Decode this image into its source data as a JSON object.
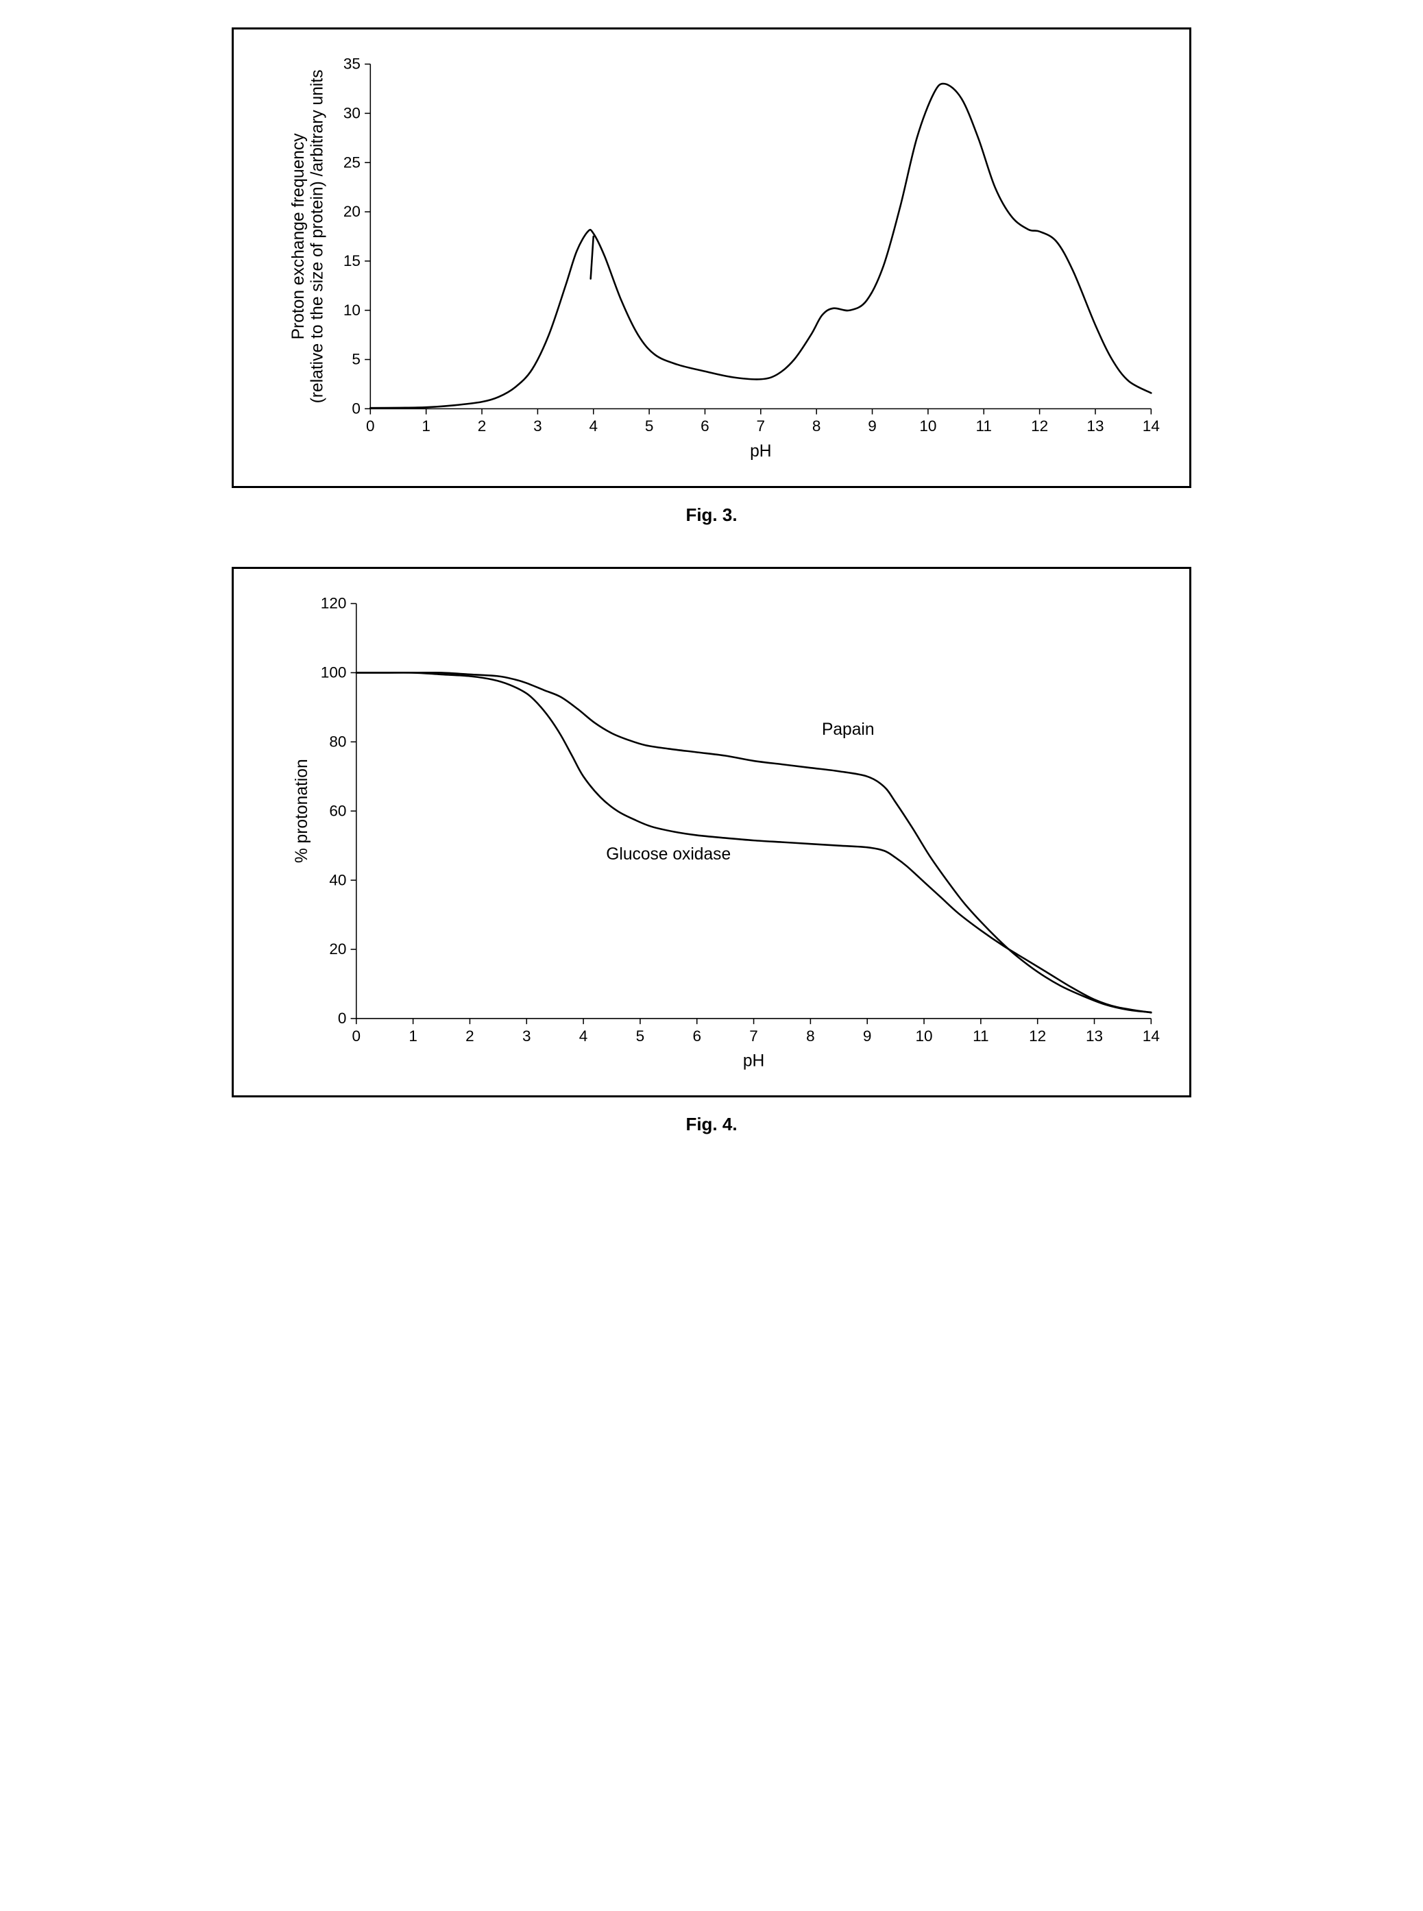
{
  "fig3": {
    "type": "line",
    "caption": "Fig. 3.",
    "xlabel": "pH",
    "ylabel_line1": "Proton exchange frequency",
    "ylabel_line2": "(relative to the size of protein) /arbitrary units",
    "xlim": [
      0,
      14
    ],
    "ylim": [
      0,
      35
    ],
    "xticks": [
      0,
      1,
      2,
      3,
      4,
      5,
      6,
      7,
      8,
      9,
      10,
      11,
      12,
      13,
      14
    ],
    "yticks": [
      0,
      5,
      10,
      15,
      20,
      25,
      30,
      35
    ],
    "line_color": "#000000",
    "line_width": 2.5,
    "border_color": "#000000",
    "background_color": "#ffffff",
    "tick_fontsize": 22,
    "label_fontsize": 24,
    "series": [
      {
        "name": "proton-exchange",
        "x": [
          0,
          0.5,
          1.0,
          1.5,
          2.0,
          2.3,
          2.6,
          2.9,
          3.2,
          3.5,
          3.7,
          3.9,
          4.0,
          4.2,
          4.5,
          4.8,
          5.1,
          5.5,
          6.0,
          6.5,
          7.0,
          7.3,
          7.6,
          7.9,
          8.1,
          8.3,
          8.6,
          8.9,
          9.2,
          9.5,
          9.8,
          10.1,
          10.3,
          10.6,
          10.9,
          11.2,
          11.5,
          11.8,
          12.0,
          12.3,
          12.6,
          13.0,
          13.3,
          13.6,
          14.0
        ],
        "y": [
          0.08,
          0.1,
          0.15,
          0.35,
          0.7,
          1.2,
          2.2,
          4.0,
          7.5,
          12.5,
          16.0,
          18.0,
          17.8,
          15.5,
          11.0,
          7.5,
          5.5,
          4.5,
          3.8,
          3.2,
          3.0,
          3.5,
          5.0,
          7.5,
          9.5,
          10.2,
          10.0,
          11.0,
          14.5,
          20.5,
          27.5,
          32.0,
          33.0,
          31.5,
          27.5,
          22.5,
          19.5,
          18.2,
          18.0,
          17.0,
          14.0,
          8.5,
          5.0,
          2.8,
          1.6
        ]
      }
    ],
    "tick_mark": [
      {
        "x": [
          3.95,
          4.0
        ],
        "y": [
          13.2,
          17.5
        ]
      }
    ]
  },
  "fig4": {
    "type": "line",
    "caption": "Fig. 4.",
    "xlabel": "pH",
    "ylabel": "% protonation",
    "xlim": [
      0,
      14
    ],
    "ylim": [
      0,
      120
    ],
    "xticks": [
      0,
      1,
      2,
      3,
      4,
      5,
      6,
      7,
      8,
      9,
      10,
      11,
      12,
      13,
      14
    ],
    "yticks": [
      0,
      20,
      40,
      60,
      80,
      100,
      120
    ],
    "line_color": "#000000",
    "line_width": 2.5,
    "border_color": "#000000",
    "background_color": "#ffffff",
    "tick_fontsize": 22,
    "label_fontsize": 24,
    "series": [
      {
        "name": "papain",
        "label": "Papain",
        "label_x": 8.2,
        "label_y": 82,
        "x": [
          0,
          0.5,
          1.0,
          1.5,
          2.0,
          2.5,
          2.8,
          3.0,
          3.3,
          3.6,
          3.9,
          4.2,
          4.5,
          4.8,
          5.1,
          5.5,
          6.0,
          6.5,
          7.0,
          7.5,
          8.0,
          8.5,
          9.0,
          9.3,
          9.5,
          9.8,
          10.1,
          10.4,
          10.7,
          11.0,
          11.3,
          11.6,
          12.0,
          12.4,
          12.8,
          13.2,
          13.6,
          14.0
        ],
        "y": [
          100,
          100,
          100,
          100,
          99.5,
          99,
          98,
          97,
          95,
          93,
          89.5,
          85.5,
          82.5,
          80.5,
          79,
          78,
          77,
          76,
          74.5,
          73.5,
          72.5,
          71.5,
          70,
          67,
          62.5,
          55,
          47,
          40,
          33.5,
          28,
          23,
          18.5,
          13.5,
          9.5,
          6.5,
          4,
          2.5,
          1.8
        ]
      },
      {
        "name": "glucose-oxidase",
        "label": "Glucose oxidase",
        "label_x": 4.4,
        "label_y": 46,
        "x": [
          0,
          0.5,
          1.0,
          1.5,
          2.0,
          2.4,
          2.7,
          3.0,
          3.2,
          3.4,
          3.6,
          3.8,
          4.0,
          4.3,
          4.6,
          4.9,
          5.2,
          5.6,
          6.0,
          6.5,
          7.0,
          7.5,
          8.0,
          8.5,
          9.0,
          9.3,
          9.5,
          9.7,
          10.0,
          10.3,
          10.6,
          11.0,
          11.4,
          11.8,
          12.2,
          12.6,
          13.0,
          13.4,
          14.0
        ],
        "y": [
          100,
          100,
          100,
          99.5,
          99,
          98,
          96.5,
          94,
          91,
          87,
          82,
          76,
          70,
          64,
          60,
          57.5,
          55.5,
          54,
          53,
          52.2,
          51.5,
          51,
          50.5,
          50,
          49.5,
          48.5,
          46.5,
          44,
          39.5,
          35,
          30.5,
          25.5,
          21,
          17,
          13,
          9,
          5.5,
          3.3,
          1.7
        ]
      }
    ]
  }
}
